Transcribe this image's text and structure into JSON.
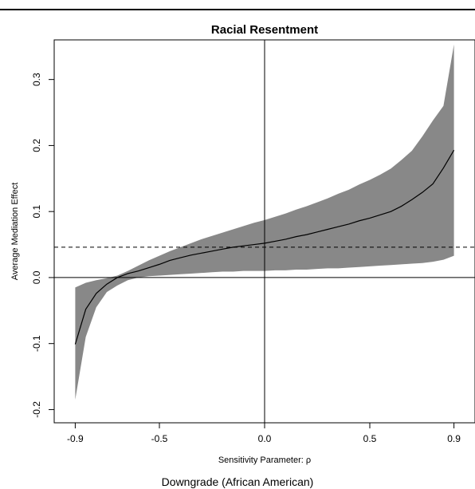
{
  "caption": "Downgrade (African American)",
  "chart_data": {
    "type": "line",
    "title": "Racial Resentment",
    "xlabel": "Sensitivity Parameter: ρ",
    "ylabel": "Average Mediation Effect",
    "xlim": [
      -1.0,
      1.0
    ],
    "ylim": [
      -0.22,
      0.36
    ],
    "xticks": [
      -0.9,
      -0.5,
      0.0,
      0.5,
      0.9
    ],
    "xtick_labels": [
      "-0.9",
      "-0.5",
      "0.0",
      "0.5",
      "0.9"
    ],
    "yticks": [
      -0.2,
      -0.1,
      0.0,
      0.1,
      0.2,
      0.3
    ],
    "ytick_labels": [
      "-0.2",
      "-0.1",
      "0.0",
      "0.1",
      "0.2",
      "0.3"
    ],
    "grid": false,
    "x": [
      -0.9,
      -0.85,
      -0.8,
      -0.75,
      -0.7,
      -0.65,
      -0.6,
      -0.55,
      -0.5,
      -0.45,
      -0.4,
      -0.35,
      -0.3,
      -0.25,
      -0.2,
      -0.15,
      -0.1,
      -0.05,
      0.0,
      0.05,
      0.1,
      0.15,
      0.2,
      0.25,
      0.3,
      0.35,
      0.4,
      0.45,
      0.5,
      0.55,
      0.6,
      0.65,
      0.7,
      0.75,
      0.8,
      0.85,
      0.9
    ],
    "series": [
      {
        "role": "estimate",
        "color": "#000000",
        "values": [
          -0.101,
          -0.048,
          -0.024,
          -0.01,
          0.0,
          0.006,
          0.01,
          0.015,
          0.02,
          0.026,
          0.03,
          0.034,
          0.037,
          0.04,
          0.043,
          0.046,
          0.048,
          0.05,
          0.052,
          0.055,
          0.058,
          0.062,
          0.065,
          0.069,
          0.073,
          0.077,
          0.081,
          0.086,
          0.09,
          0.095,
          0.1,
          0.108,
          0.118,
          0.129,
          0.142,
          0.166,
          0.193
        ]
      },
      {
        "role": "ci_upper",
        "color": "#888888",
        "values": [
          -0.015,
          -0.008,
          -0.004,
          -0.001,
          0.003,
          0.01,
          0.018,
          0.026,
          0.033,
          0.04,
          0.046,
          0.052,
          0.058,
          0.063,
          0.068,
          0.073,
          0.078,
          0.083,
          0.087,
          0.092,
          0.097,
          0.103,
          0.108,
          0.114,
          0.12,
          0.127,
          0.133,
          0.141,
          0.148,
          0.156,
          0.165,
          0.178,
          0.192,
          0.214,
          0.238,
          0.26,
          0.353
        ]
      },
      {
        "role": "ci_lower",
        "color": "#888888",
        "values": [
          -0.185,
          -0.09,
          -0.045,
          -0.022,
          -0.012,
          -0.004,
          0.0,
          0.002,
          0.003,
          0.004,
          0.005,
          0.006,
          0.007,
          0.008,
          0.009,
          0.009,
          0.01,
          0.01,
          0.01,
          0.011,
          0.011,
          0.012,
          0.012,
          0.013,
          0.014,
          0.014,
          0.015,
          0.016,
          0.017,
          0.018,
          0.019,
          0.02,
          0.021,
          0.022,
          0.024,
          0.027,
          0.033
        ]
      }
    ],
    "reference_lines": [
      {
        "orientation": "horizontal",
        "value": 0.0,
        "style": "solid"
      },
      {
        "orientation": "vertical",
        "value": 0.0,
        "style": "solid"
      },
      {
        "orientation": "horizontal",
        "value": 0.046,
        "style": "dashed"
      }
    ]
  }
}
